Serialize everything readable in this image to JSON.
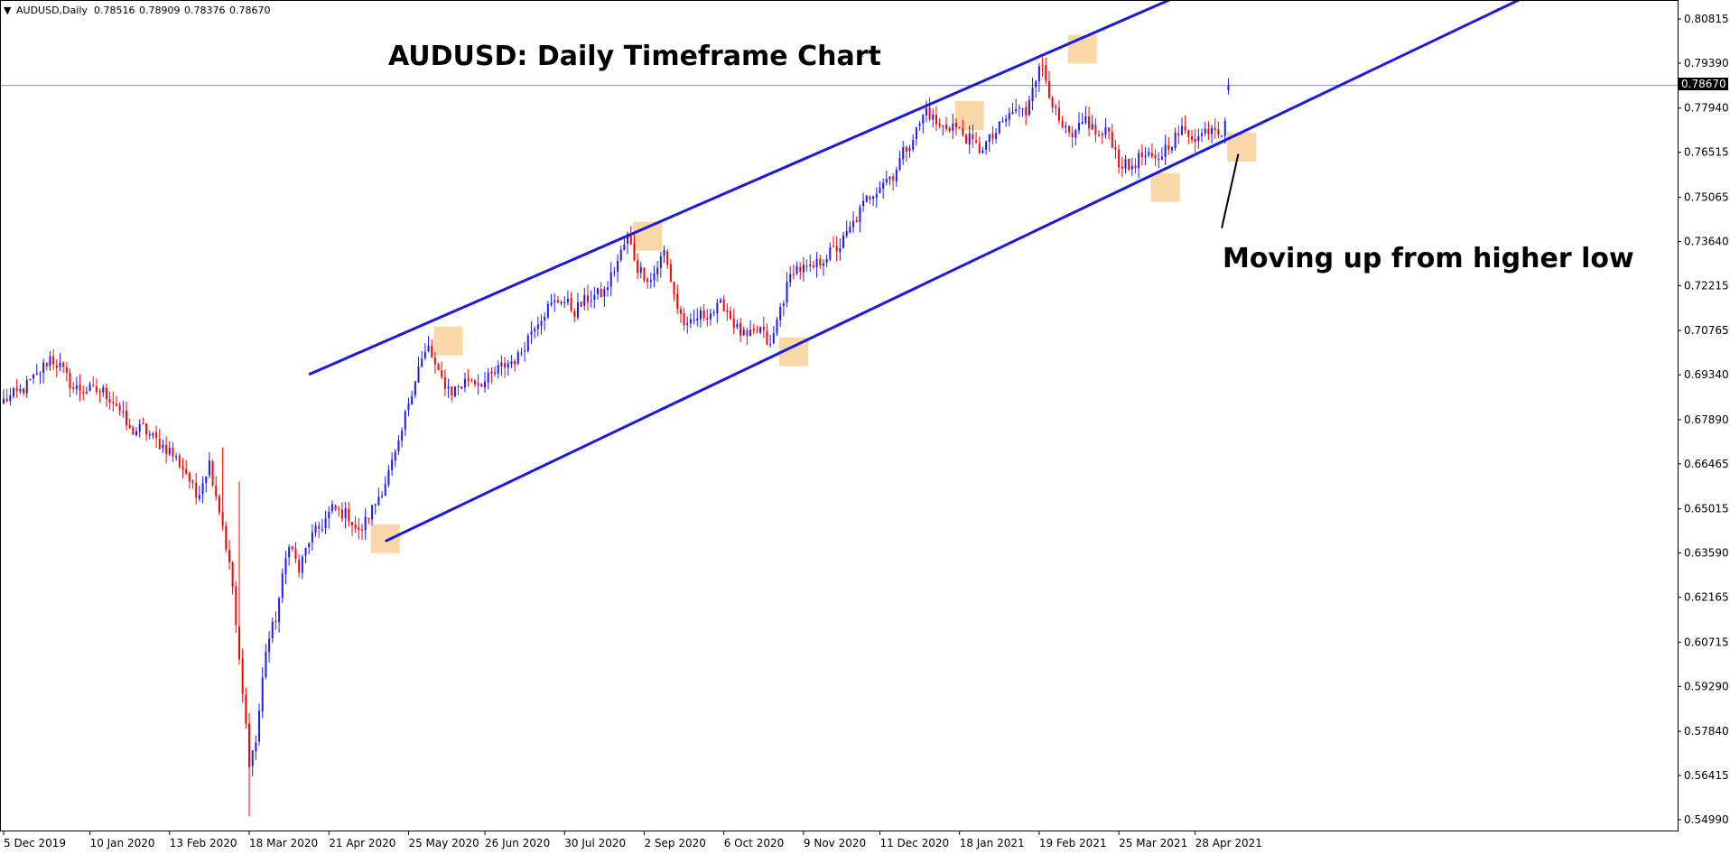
{
  "header": {
    "collapse_arrow": "▼",
    "symbol": "AUDUSD,Daily",
    "open": "0.78516",
    "high": "0.78909",
    "low": "0.78376",
    "close": "0.78670"
  },
  "colors": {
    "bull": "#1a1aff",
    "bear": "#ff0000",
    "channel": "#1a1adf",
    "highlight": "#f7c98a",
    "price_line": "#8090b8",
    "current_label_bg": "#000000"
  },
  "chart_data": {
    "type": "candlestick",
    "title": "AUDUSD: Daily Timeframe Chart",
    "annotation": "Moving up from higher low",
    "current_price": "0.78670",
    "ylim": [
      0.5438,
      0.8138
    ],
    "y_ticks": [
      "0.80815",
      "0.79390",
      "0.77940",
      "0.76515",
      "0.75065",
      "0.73640",
      "0.72215",
      "0.70765",
      "0.69340",
      "0.67890",
      "0.66465",
      "0.65015",
      "0.63590",
      "0.62165",
      "0.60715",
      "0.59290",
      "0.57840",
      "0.56415",
      "0.54990"
    ],
    "x_ticks": [
      "5 Dec 2019",
      "10 Jan 2020",
      "13 Feb 2020",
      "18 Mar 2020",
      "21 Apr 2020",
      "25 May 2020",
      "26 Jun 2020",
      "30 Jul 2020",
      "2 Sep 2020",
      "6 Oct 2020",
      "9 Nov 2020",
      "11 Dec 2020",
      "18 Jan 2021",
      "19 Feb 2021",
      "25 Mar 2021",
      "28 Apr 2021"
    ],
    "x_tick_index": [
      0,
      26,
      50,
      74,
      98,
      122,
      145,
      169,
      193,
      217,
      241,
      264,
      288,
      312,
      336,
      359
    ],
    "n_bars": 370,
    "close_keypoints": [
      [
        0,
        0.685
      ],
      [
        5,
        0.688
      ],
      [
        10,
        0.693
      ],
      [
        14,
        0.699
      ],
      [
        17,
        0.696
      ],
      [
        21,
        0.689
      ],
      [
        30,
        0.688
      ],
      [
        34,
        0.684
      ],
      [
        38,
        0.675
      ],
      [
        42,
        0.676
      ],
      [
        46,
        0.672
      ],
      [
        50,
        0.669
      ],
      [
        55,
        0.662
      ],
      [
        58,
        0.654
      ],
      [
        62,
        0.665
      ],
      [
        66,
        0.645
      ],
      [
        69,
        0.625
      ],
      [
        71,
        0.6
      ],
      [
        73,
        0.58
      ],
      [
        74,
        0.569
      ],
      [
        76,
        0.575
      ],
      [
        79,
        0.605
      ],
      [
        82,
        0.615
      ],
      [
        86,
        0.64
      ],
      [
        89,
        0.63
      ],
      [
        92,
        0.64
      ],
      [
        96,
        0.645
      ],
      [
        99,
        0.65
      ],
      [
        104,
        0.648
      ],
      [
        107,
        0.642
      ],
      [
        112,
        0.652
      ],
      [
        115,
        0.659
      ],
      [
        119,
        0.67
      ],
      [
        122,
        0.685
      ],
      [
        125,
        0.696
      ],
      [
        128,
        0.702
      ],
      [
        131,
        0.693
      ],
      [
        135,
        0.688
      ],
      [
        140,
        0.692
      ],
      [
        145,
        0.691
      ],
      [
        150,
        0.696
      ],
      [
        155,
        0.699
      ],
      [
        160,
        0.71
      ],
      [
        164,
        0.715
      ],
      [
        168,
        0.718
      ],
      [
        172,
        0.714
      ],
      [
        176,
        0.718
      ],
      [
        181,
        0.72
      ],
      [
        185,
        0.73
      ],
      [
        188,
        0.738
      ],
      [
        191,
        0.728
      ],
      [
        195,
        0.724
      ],
      [
        199,
        0.733
      ],
      [
        203,
        0.715
      ],
      [
        206,
        0.708
      ],
      [
        209,
        0.712
      ],
      [
        214,
        0.714
      ],
      [
        217,
        0.716
      ],
      [
        221,
        0.708
      ],
      [
        224,
        0.705
      ],
      [
        228,
        0.708
      ],
      [
        231,
        0.702
      ],
      [
        234,
        0.715
      ],
      [
        238,
        0.728
      ],
      [
        243,
        0.727
      ],
      [
        248,
        0.732
      ],
      [
        252,
        0.735
      ],
      [
        256,
        0.742
      ],
      [
        260,
        0.75
      ],
      [
        265,
        0.756
      ],
      [
        268,
        0.758
      ],
      [
        271,
        0.765
      ],
      [
        275,
        0.772
      ],
      [
        278,
        0.779
      ],
      [
        282,
        0.773
      ],
      [
        286,
        0.774
      ],
      [
        290,
        0.77
      ],
      [
        294,
        0.766
      ],
      [
        298,
        0.77
      ],
      [
        302,
        0.776
      ],
      [
        305,
        0.779
      ],
      [
        308,
        0.778
      ],
      [
        310,
        0.788
      ],
      [
        313,
        0.793
      ],
      [
        315,
        0.785
      ],
      [
        318,
        0.774
      ],
      [
        322,
        0.769
      ],
      [
        326,
        0.776
      ],
      [
        330,
        0.77
      ],
      [
        333,
        0.772
      ],
      [
        336,
        0.762
      ],
      [
        339,
        0.76
      ],
      [
        343,
        0.764
      ],
      [
        347,
        0.762
      ],
      [
        351,
        0.768
      ],
      [
        355,
        0.772
      ],
      [
        360,
        0.77
      ],
      [
        364,
        0.774
      ],
      [
        367,
        0.772
      ],
      [
        368,
        0.777
      ],
      [
        369,
        0.7852
      ]
    ],
    "last_bar": {
      "open": 0.78516,
      "high": 0.78909,
      "low": 0.78376,
      "close": 0.7867
    },
    "channel_lines": [
      {
        "name": "upper",
        "from": [
          92,
          0.6935
        ],
        "to": [
          359,
          0.8179
        ]
      },
      {
        "name": "lower",
        "from": [
          115,
          0.6397
        ],
        "to": [
          464,
          0.8181
        ]
      }
    ],
    "highlight_zones": [
      [
        115,
        0.6405
      ],
      [
        134,
        0.7043
      ],
      [
        194,
        0.7381
      ],
      [
        238,
        0.7008
      ],
      [
        291,
        0.777
      ],
      [
        325,
        0.7984
      ],
      [
        350,
        0.7538
      ],
      [
        373,
        0.7668
      ]
    ],
    "annotation_arrow": {
      "from": [
        372,
        0.7646
      ],
      "to": [
        367,
        0.7407
      ]
    }
  }
}
